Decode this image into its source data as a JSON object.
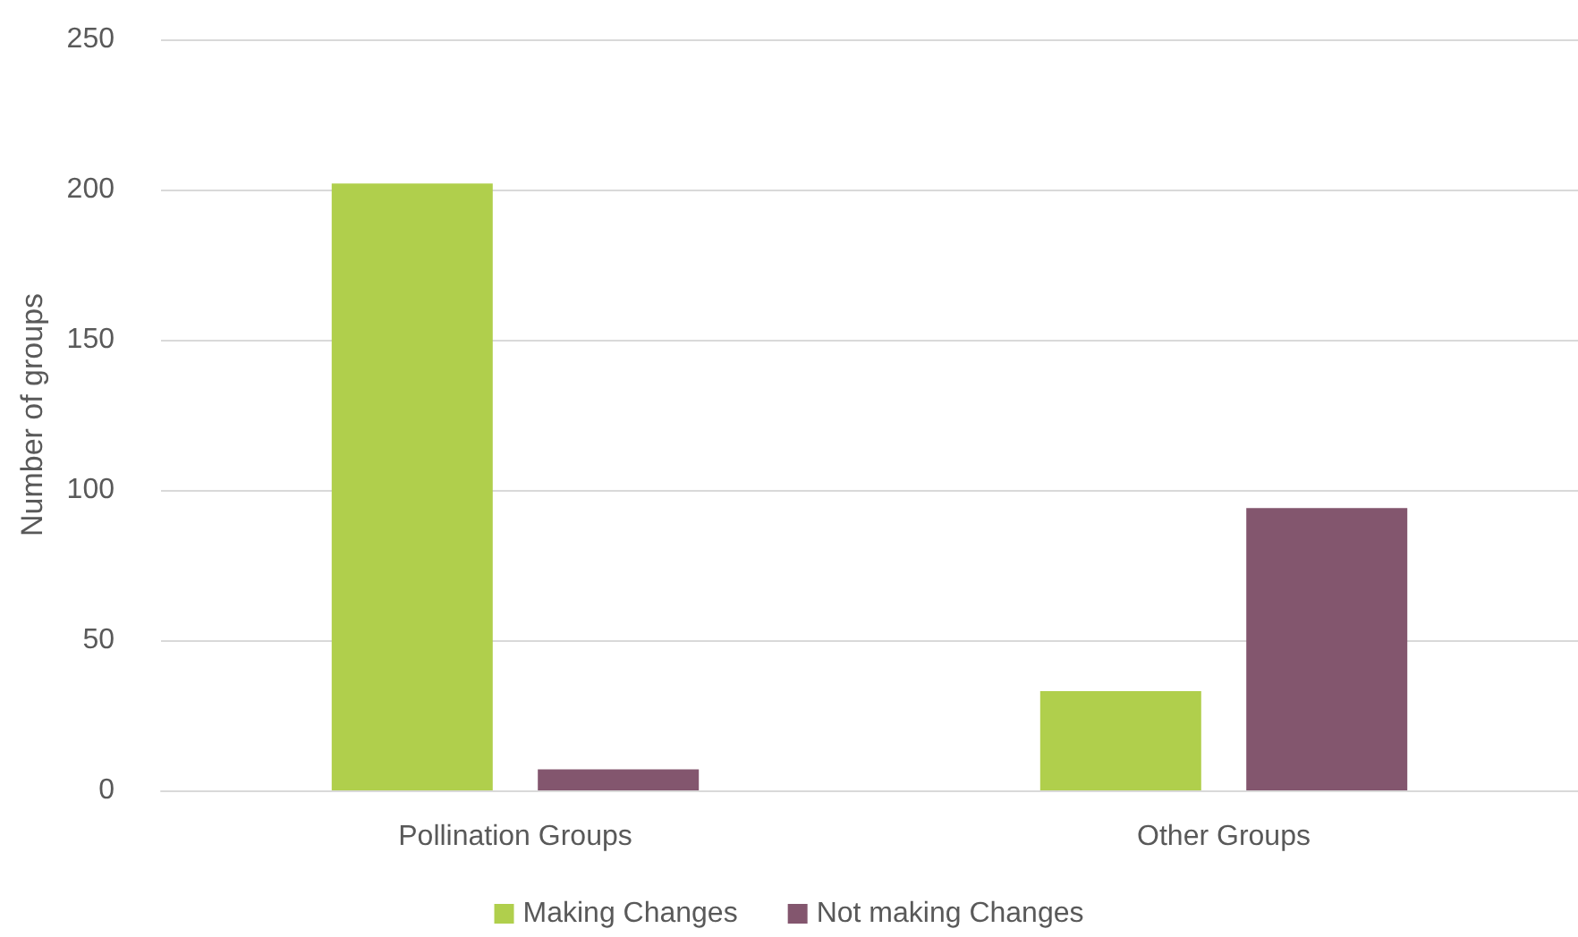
{
  "chart_data": {
    "type": "bar",
    "ylabel": "Number of groups",
    "categories": [
      "Pollination Groups",
      "Other Groups"
    ],
    "series": [
      {
        "name": "Making Changes",
        "color": "#b0cf4c",
        "values": [
          202,
          33
        ]
      },
      {
        "name": "Not making Changes",
        "color": "#83566e",
        "values": [
          7,
          94
        ]
      }
    ],
    "ylim": [
      0,
      250
    ],
    "yticks": [
      0,
      50,
      100,
      150,
      200,
      250
    ],
    "grid": "y",
    "legend": "bottom"
  }
}
